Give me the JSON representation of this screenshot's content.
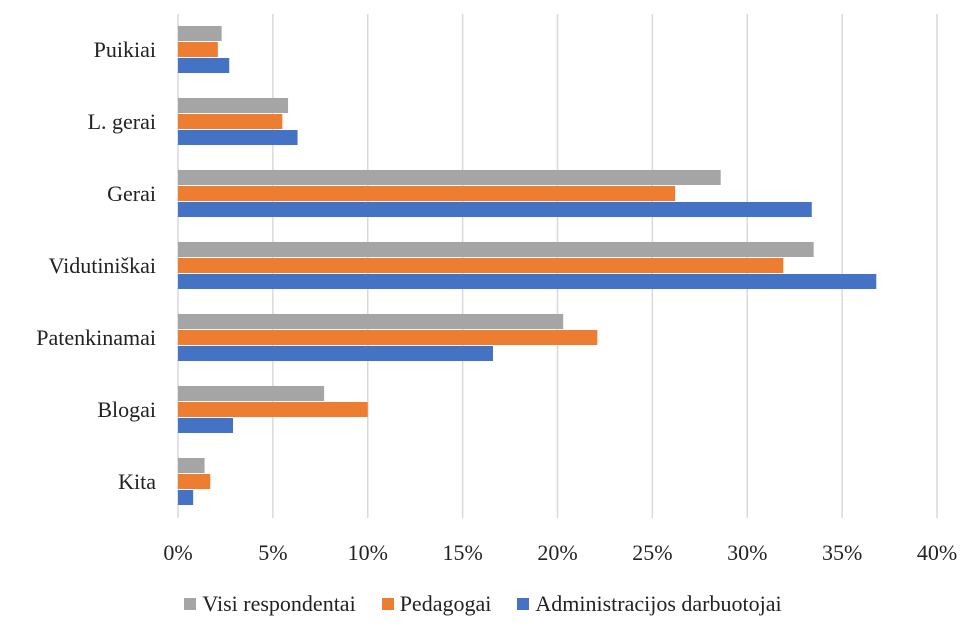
{
  "chart_data": {
    "type": "bar",
    "orientation": "horizontal",
    "title": "",
    "xlabel": "",
    "ylabel": "",
    "categories": [
      "Puikiai",
      "L. gerai",
      "Gerai",
      "Vidutiniškai",
      "Patenkinamai",
      "Blogai",
      "Kita"
    ],
    "series": [
      {
        "name": "Visi respondentai",
        "color": "#A5A5A5",
        "values": [
          2.3,
          5.8,
          28.6,
          33.5,
          20.3,
          7.7,
          1.4
        ]
      },
      {
        "name": "Pedagogai",
        "color": "#ED7D31",
        "values": [
          2.1,
          5.5,
          26.2,
          31.9,
          22.1,
          10.0,
          1.7
        ]
      },
      {
        "name": "Administracijos darbuotojai",
        "color": "#4472C4",
        "values": [
          2.7,
          6.3,
          33.4,
          36.8,
          16.6,
          2.9,
          0.8
        ]
      }
    ],
    "xlim": [
      0,
      40
    ],
    "xticks": [
      "0%",
      "5%",
      "10%",
      "15%",
      "20%",
      "25%",
      "30%",
      "35%",
      "40%"
    ],
    "grid": true,
    "legend_position": "bottom"
  }
}
